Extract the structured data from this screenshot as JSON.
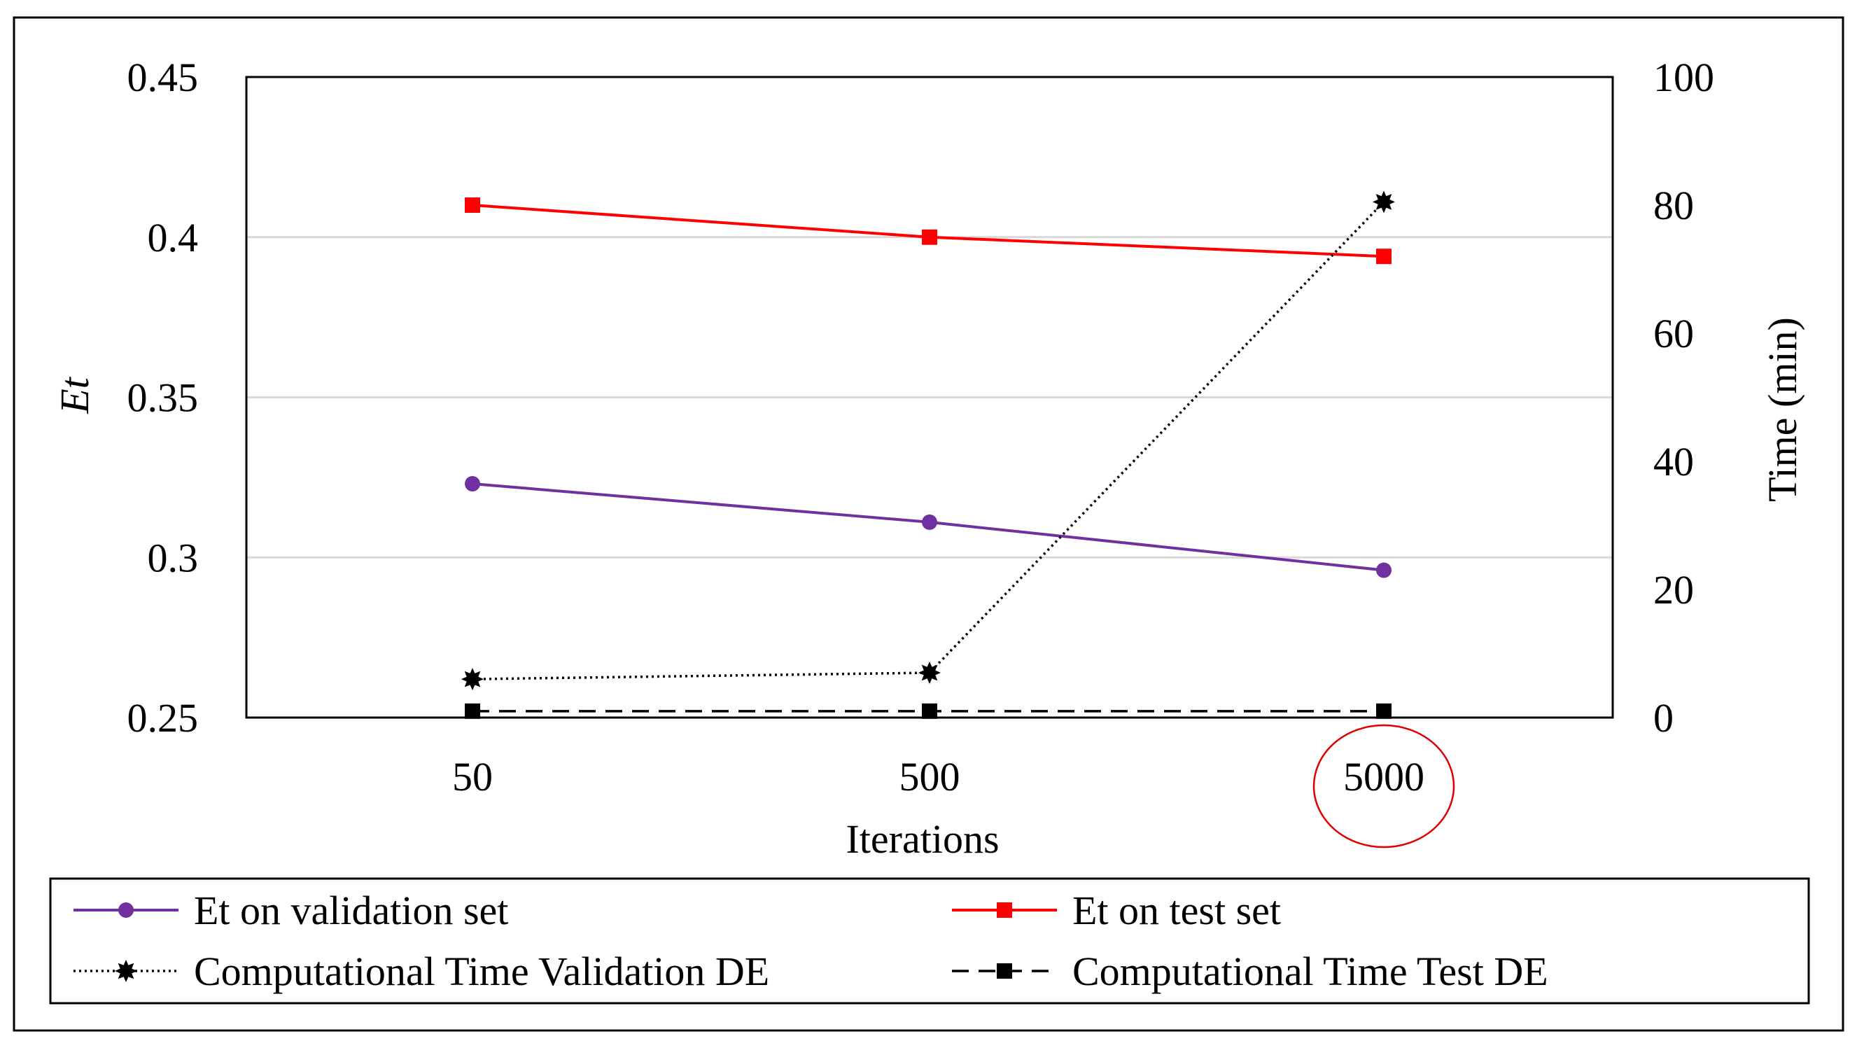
{
  "chart_data": {
    "type": "line",
    "categories": [
      "50",
      "500",
      "5000"
    ],
    "xlabel": "Iterations",
    "ylabel_left": "Et",
    "ylabel_right": "Time (min)",
    "left_axis": {
      "min": 0.25,
      "max": 0.45,
      "ticks": [
        "0.25",
        "0.3",
        "0.35",
        "0.4",
        "0.45"
      ],
      "tick_values": [
        0.25,
        0.3,
        0.35,
        0.4,
        0.45
      ]
    },
    "right_axis": {
      "min": 0,
      "max": 100,
      "ticks": [
        "0",
        "20",
        "40",
        "60",
        "80",
        "100"
      ],
      "tick_values": [
        0,
        20,
        40,
        60,
        80,
        100
      ]
    },
    "grid": true,
    "highlighted_category": "5000",
    "highlight_color": "#e00000",
    "series": [
      {
        "name": "Et on validation set",
        "axis": "left",
        "values": [
          0.323,
          0.311,
          0.296
        ],
        "color": "#7030a0",
        "marker": "circle",
        "dash": "solid"
      },
      {
        "name": "Et on test set",
        "axis": "left",
        "values": [
          0.41,
          0.4,
          0.394
        ],
        "color": "#ff0000",
        "marker": "square",
        "dash": "solid"
      },
      {
        "name": "Computational Time Validation DE",
        "axis": "right",
        "values": [
          6,
          7,
          80.5
        ],
        "color": "#000000",
        "marker": "star",
        "dash": "dotted"
      },
      {
        "name": "Computational Time Test DE",
        "axis": "right",
        "values": [
          1,
          1,
          1
        ],
        "color": "#000000",
        "marker": "square",
        "dash": "dashed"
      }
    ],
    "legend_position": "bottom"
  }
}
